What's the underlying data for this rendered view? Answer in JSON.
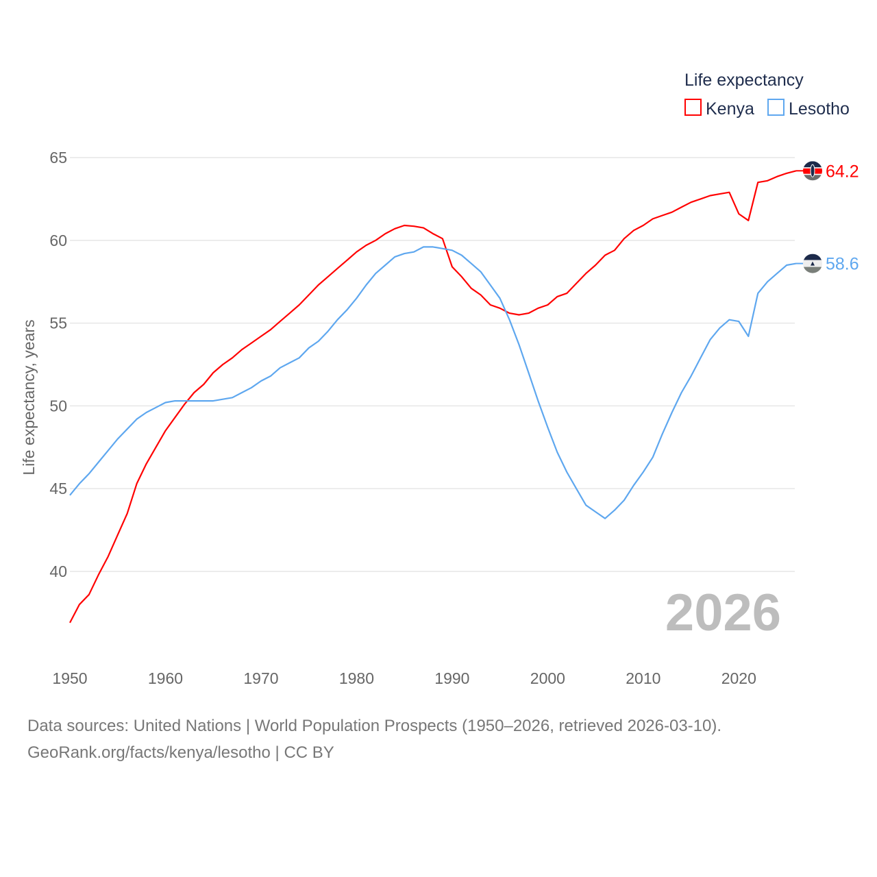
{
  "chart_data": {
    "type": "line",
    "title": "",
    "xlabel": "",
    "ylabel": "Life expectancy, years",
    "xlim": [
      1950,
      2026
    ],
    "ylim": [
      34.8,
      66
    ],
    "xticks": [
      1950,
      1960,
      1970,
      1980,
      1990,
      2000,
      2010,
      2020
    ],
    "yticks": [
      40,
      45,
      50,
      55,
      60,
      65
    ],
    "grid": true,
    "legend": {
      "title": "Life expectancy",
      "placement": "top-right"
    },
    "year_label": "2026",
    "x": [
      1950,
      1951,
      1952,
      1953,
      1954,
      1955,
      1956,
      1957,
      1958,
      1959,
      1960,
      1961,
      1962,
      1963,
      1964,
      1965,
      1966,
      1967,
      1968,
      1969,
      1970,
      1971,
      1972,
      1973,
      1974,
      1975,
      1976,
      1977,
      1978,
      1979,
      1980,
      1981,
      1982,
      1983,
      1984,
      1985,
      1986,
      1987,
      1988,
      1989,
      1990,
      1991,
      1992,
      1993,
      1994,
      1995,
      1996,
      1997,
      1998,
      1999,
      2000,
      2001,
      2002,
      2003,
      2004,
      2005,
      2006,
      2007,
      2008,
      2009,
      2010,
      2011,
      2012,
      2013,
      2014,
      2015,
      2016,
      2017,
      2018,
      2019,
      2020,
      2021,
      2022,
      2023,
      2024,
      2025,
      2026
    ],
    "series": [
      {
        "name": "Kenya",
        "color": "#ff0000",
        "end_label": "64.2",
        "values": [
          36.9,
          38.0,
          38.6,
          39.8,
          40.9,
          42.2,
          43.5,
          45.3,
          46.5,
          47.5,
          48.5,
          49.3,
          50.1,
          50.8,
          51.3,
          52.0,
          52.5,
          52.9,
          53.4,
          53.8,
          54.2,
          54.6,
          55.1,
          55.6,
          56.1,
          56.7,
          57.3,
          57.8,
          58.3,
          58.8,
          59.3,
          59.7,
          60.0,
          60.4,
          60.7,
          60.9,
          60.85,
          60.75,
          60.4,
          60.1,
          58.4,
          57.8,
          57.1,
          56.7,
          56.1,
          55.9,
          55.6,
          55.5,
          55.6,
          55.9,
          56.1,
          56.6,
          56.8,
          57.4,
          58.0,
          58.5,
          59.1,
          59.4,
          60.1,
          60.6,
          60.9,
          61.3,
          61.5,
          61.7,
          62.0,
          62.3,
          62.5,
          62.7,
          62.8,
          62.9,
          61.6,
          61.2,
          63.5,
          63.6,
          63.85,
          64.05,
          64.2
        ]
      },
      {
        "name": "Lesotho",
        "color": "#5ea7ef",
        "end_label": "58.6",
        "values": [
          44.6,
          45.3,
          45.9,
          46.6,
          47.3,
          48.0,
          48.6,
          49.2,
          49.6,
          49.9,
          50.2,
          50.3,
          50.3,
          50.3,
          50.3,
          50.3,
          50.4,
          50.5,
          50.8,
          51.1,
          51.5,
          51.8,
          52.3,
          52.6,
          52.9,
          53.5,
          53.9,
          54.5,
          55.2,
          55.8,
          56.5,
          57.3,
          58.0,
          58.5,
          59.0,
          59.2,
          59.3,
          59.6,
          59.6,
          59.5,
          59.4,
          59.1,
          58.6,
          58.1,
          57.3,
          56.5,
          55.2,
          53.7,
          52.0,
          50.3,
          48.7,
          47.2,
          46.0,
          45.0,
          44.0,
          43.6,
          43.2,
          43.7,
          44.3,
          45.2,
          46.0,
          46.9,
          48.3,
          49.6,
          50.8,
          51.8,
          52.9,
          54.0,
          54.7,
          55.2,
          55.1,
          54.2,
          56.8,
          57.5,
          58.0,
          58.5,
          58.6
        ]
      }
    ]
  },
  "footer": {
    "line1": "Data sources: United Nations | World Population Prospects (1950–2026, retrieved 2026-03-10).",
    "line2": "GeoRank.org/facts/kenya/lesotho | CC BY"
  }
}
